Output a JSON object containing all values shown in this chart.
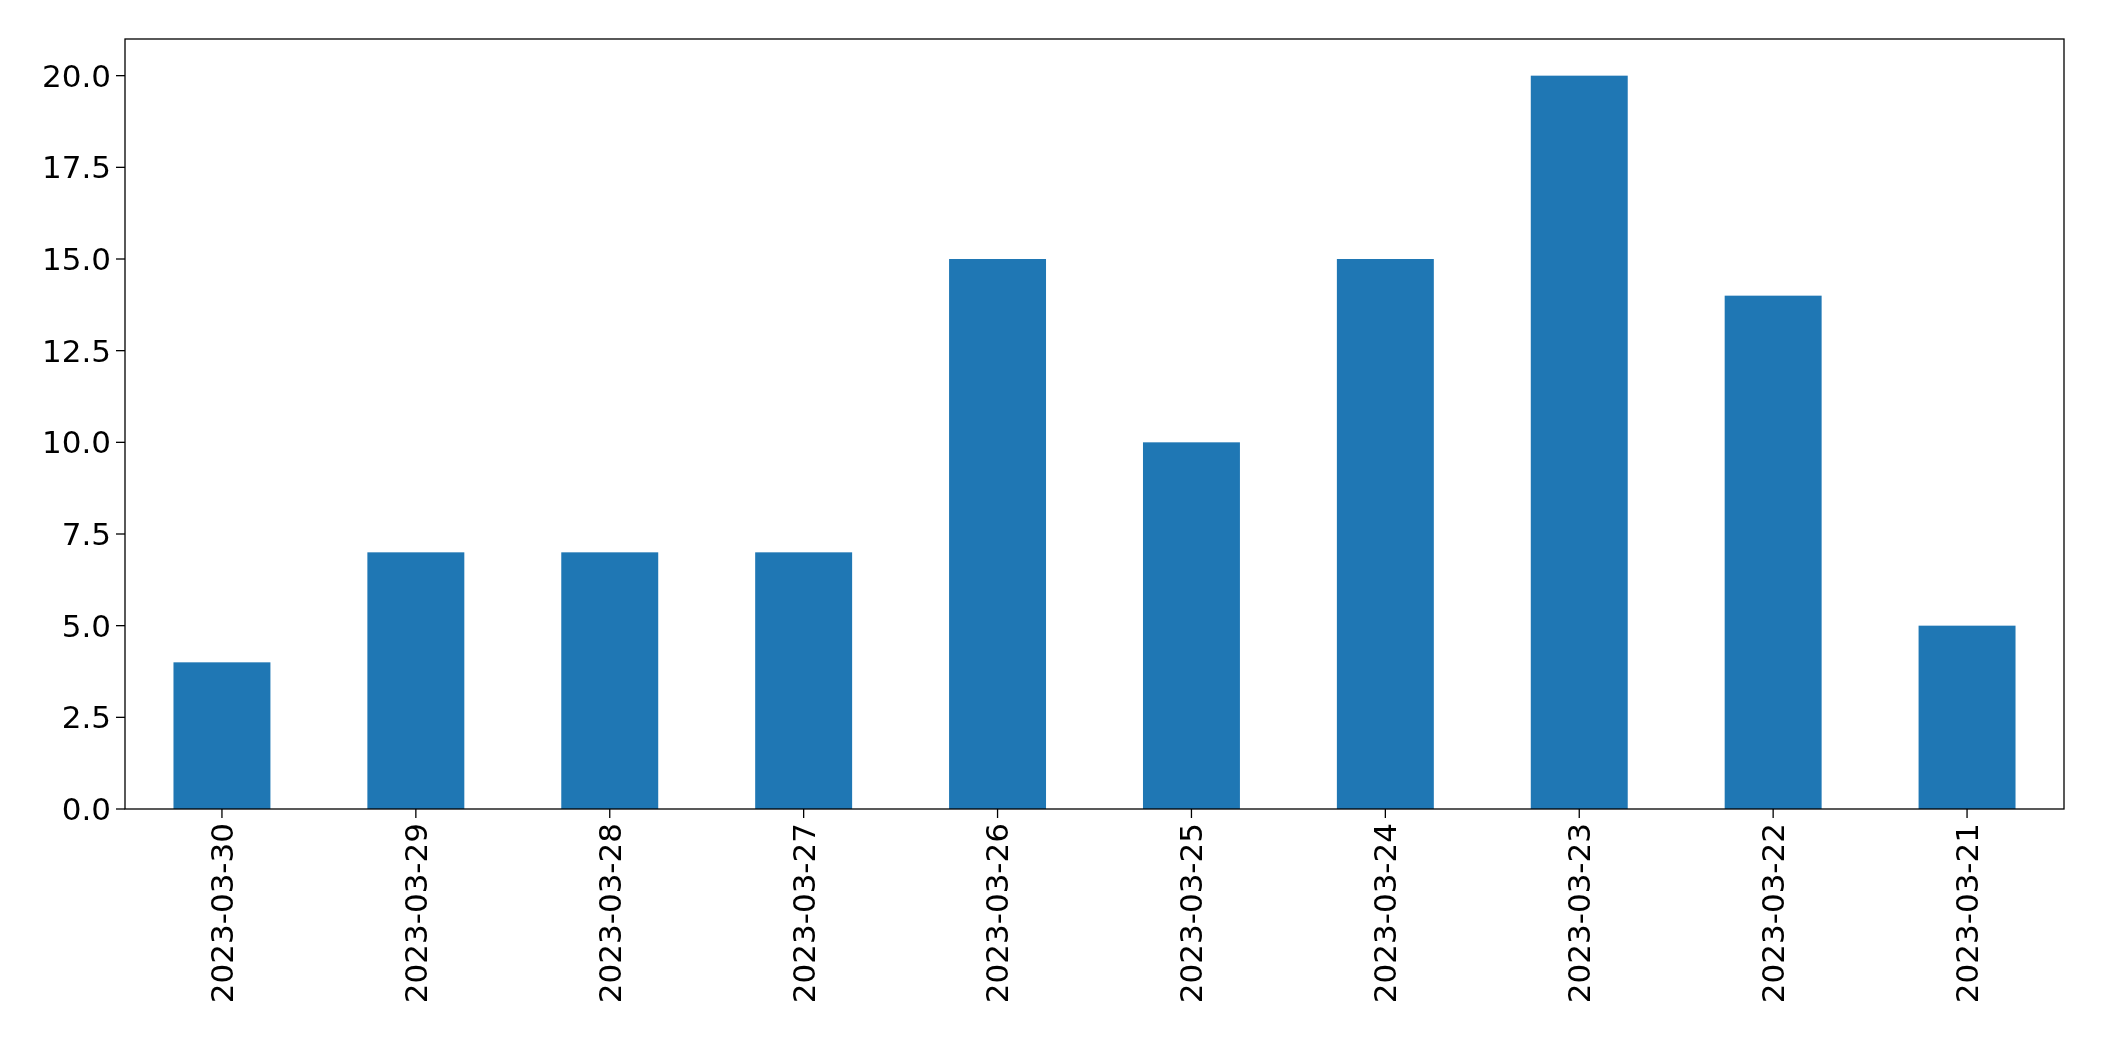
{
  "chart_data": {
    "type": "bar",
    "categories": [
      "2023-03-30",
      "2023-03-29",
      "2023-03-28",
      "2023-03-27",
      "2023-03-26",
      "2023-03-25",
      "2023-03-24",
      "2023-03-23",
      "2023-03-22",
      "2023-03-21"
    ],
    "values": [
      4,
      7,
      7,
      7,
      15,
      10,
      15,
      20,
      14,
      5
    ],
    "color": "#1f77b4",
    "ylim": [
      0,
      21
    ],
    "yticks": [
      {
        "value": 0,
        "label": "0.0"
      },
      {
        "value": 2.5,
        "label": "2.5"
      },
      {
        "value": 5,
        "label": "5.0"
      },
      {
        "value": 7.5,
        "label": "7.5"
      },
      {
        "value": 10,
        "label": "10.0"
      },
      {
        "value": 12.5,
        "label": "12.5"
      },
      {
        "value": 15,
        "label": "15.0"
      },
      {
        "value": 17.5,
        "label": "17.5"
      },
      {
        "value": 20,
        "label": "20.0"
      }
    ],
    "grid": false
  }
}
